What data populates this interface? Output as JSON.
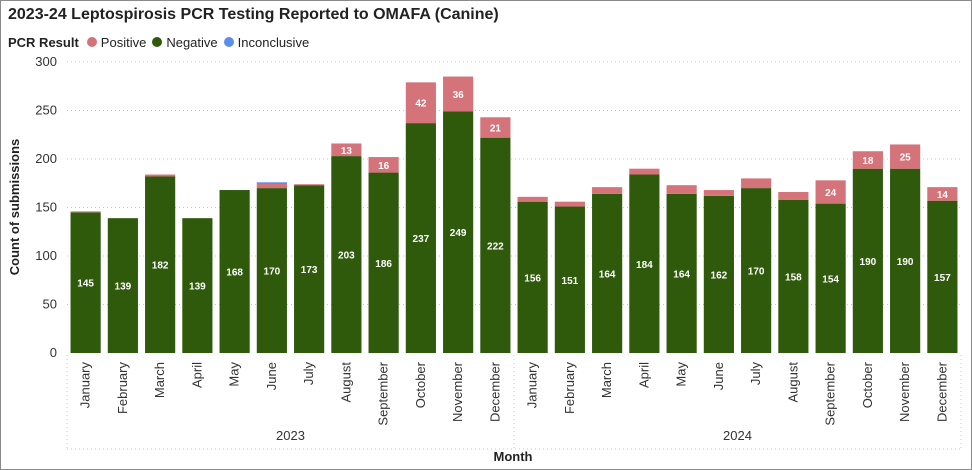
{
  "chart_data": {
    "type": "bar",
    "stacked": true,
    "title": "2023-24 Leptospirosis PCR Testing Reported to OMAFA (Canine)",
    "xlabel": "Month",
    "ylabel": "Count of submissions",
    "ylim": [
      0,
      300
    ],
    "yticks": [
      0,
      50,
      100,
      150,
      200,
      250,
      300
    ],
    "grid": true,
    "legend": {
      "title": "PCR Result",
      "placement": "top-left",
      "items": [
        "Positive",
        "Negative",
        "Inconclusive"
      ]
    },
    "groups": [
      {
        "label": "2023",
        "months": [
          "January",
          "February",
          "March",
          "April",
          "May",
          "June",
          "July",
          "August",
          "September",
          "October",
          "November",
          "December"
        ]
      },
      {
        "label": "2024",
        "months": [
          "January",
          "February",
          "March",
          "April",
          "May",
          "June",
          "July",
          "August",
          "September",
          "October",
          "November",
          "December"
        ]
      }
    ],
    "series": [
      {
        "name": "Negative",
        "color": "#2f5a0c",
        "values": [
          145,
          139,
          182,
          139,
          168,
          170,
          173,
          203,
          186,
          237,
          249,
          222,
          156,
          151,
          164,
          184,
          164,
          162,
          170,
          158,
          154,
          190,
          190,
          157
        ],
        "labeled": true
      },
      {
        "name": "Positive",
        "color": "#d4737a",
        "values": [
          1,
          0,
          2,
          0,
          0,
          5,
          1,
          13,
          16,
          42,
          36,
          21,
          5,
          5,
          7,
          6,
          9,
          6,
          10,
          8,
          24,
          18,
          25,
          14
        ],
        "labeled": [
          false,
          false,
          false,
          false,
          false,
          false,
          false,
          true,
          true,
          true,
          true,
          true,
          false,
          false,
          false,
          false,
          false,
          false,
          false,
          false,
          true,
          true,
          true,
          true
        ]
      },
      {
        "name": "Inconclusive",
        "color": "#5b8ee8",
        "values": [
          0,
          0,
          0,
          0,
          0,
          1,
          0,
          0,
          0,
          0,
          0,
          0,
          0,
          0,
          0,
          0,
          0,
          0,
          0,
          0,
          0,
          0,
          0,
          0
        ],
        "labeled": false
      }
    ]
  }
}
